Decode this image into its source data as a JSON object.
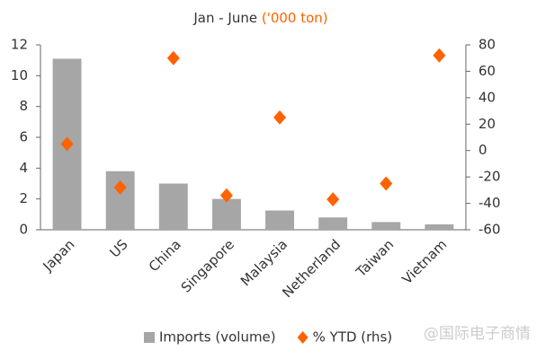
{
  "chart_data": {
    "type": "bar",
    "title": "Jan - June",
    "title_unit": "('000 ton)",
    "title_unit_color": "#ff6200",
    "categories": [
      "Japan",
      "US",
      "China",
      "Singapore",
      "Malaysia",
      "Netherland",
      "Taiwan",
      "Vietnam"
    ],
    "series": [
      {
        "name": "Imports (volume)",
        "type": "bar",
        "color": "#a6a6a6",
        "values": [
          11.1,
          3.8,
          3.0,
          2.0,
          1.25,
          0.8,
          0.5,
          0.35
        ]
      },
      {
        "name": "% YTD (rhs)",
        "type": "scatter",
        "axis": "y2",
        "color": "#ff6200",
        "values": [
          5,
          -28,
          70,
          -34,
          25,
          -37,
          -25,
          72
        ]
      }
    ],
    "ylim": [
      0,
      12
    ],
    "yticks": [
      0,
      2,
      4,
      6,
      8,
      10,
      12
    ],
    "y2lim": [
      -60,
      80
    ],
    "y2ticks": [
      -60,
      -40,
      -20,
      0,
      20,
      40,
      60,
      80
    ],
    "legend": "bottom",
    "grid": false,
    "watermark": "@国际电子商情"
  }
}
